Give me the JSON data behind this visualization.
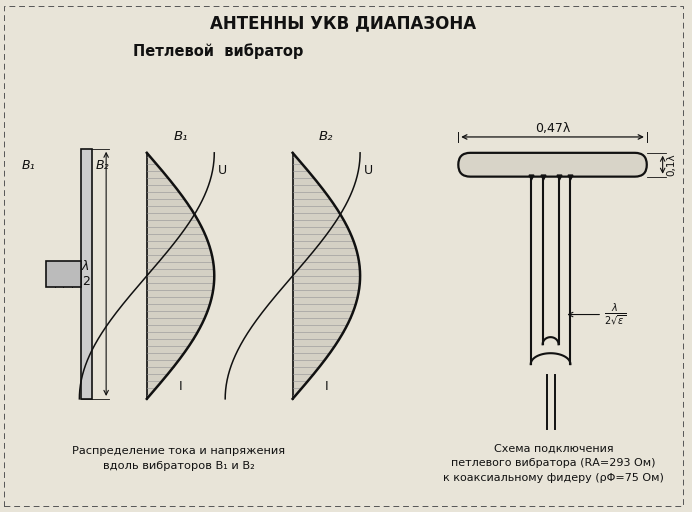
{
  "title": "АНТЕННЫ УКВ ДИАПАЗОНА",
  "subtitle": "Петлевой  вибратор",
  "bg_color": "#e8e4d8",
  "line_color": "#111111",
  "caption_left": "Распределение тока и напряжения\nвдоль вибраторов B₁ и B₂",
  "caption_right": "Схема подключения\nпетлевого вибратора (RА=293 Ом)\nк коаксиальному фидеру (ρΦ=75 Ом)",
  "label_B1_top": "B₁",
  "label_B2_top": "B₂",
  "label_B1_left": "B₁",
  "label_B2_left": "B₂",
  "label_U1": "U",
  "label_I1": "I",
  "label_U2": "U",
  "label_I2": "I",
  "label_047": "0,47λ",
  "label_01": "0,1λ"
}
